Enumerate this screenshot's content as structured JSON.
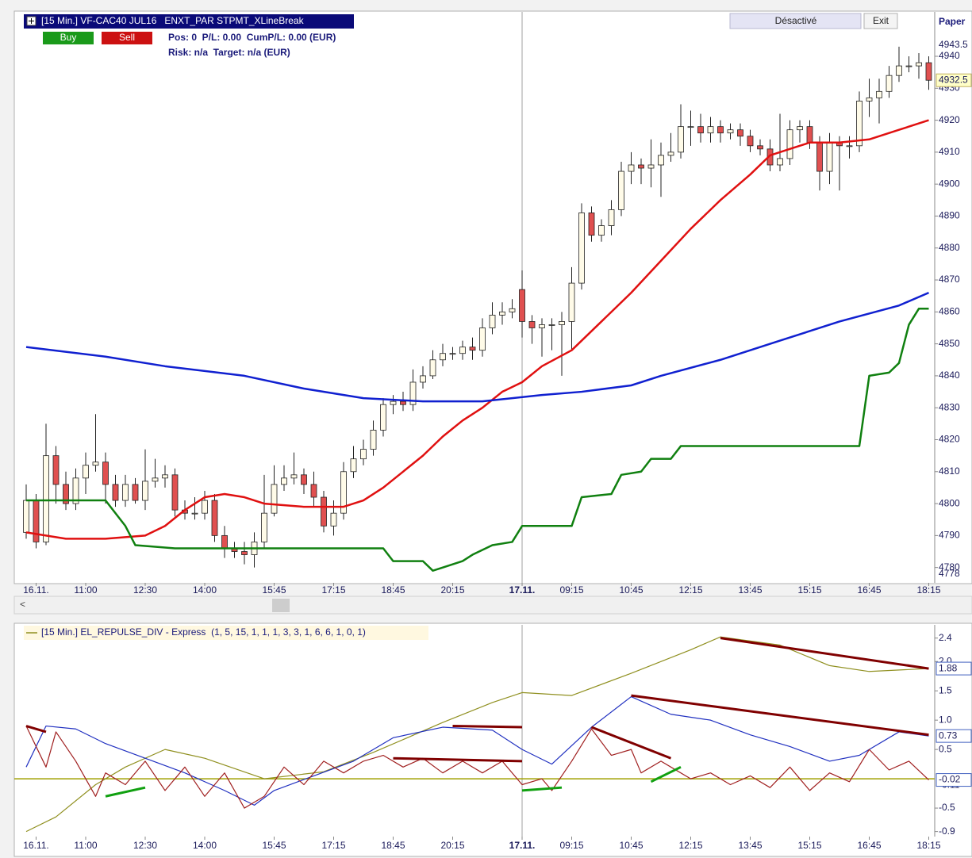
{
  "ui": {
    "title": "[15 Min.] VF-CAC40 JUL16   ENXT_PAR STPMT_XLineBreak",
    "buy": "Buy",
    "sell": "Sell",
    "position": "Pos: 0  P/L: 0.00  CumP/L: 0.00 (EUR)",
    "risk": "Risk: n/a  Target: n/a (EUR)",
    "mode": "Désactivé",
    "exit": "Exit",
    "account": "Paper"
  },
  "chart_data": [
    {
      "type": "candlestick",
      "up_color": "#fffbe8",
      "down_color": "#e05050",
      "open": [
        4791,
        4801,
        4788,
        4815,
        4806,
        4800,
        4808,
        4812,
        4813,
        4806,
        4801,
        4806,
        4801,
        4807,
        4808,
        4809,
        4798,
        4797,
        4797,
        4801,
        4790,
        4786,
        4785,
        4784,
        4788,
        4797,
        4806,
        4808,
        4809,
        4806,
        4802,
        4793,
        4797,
        4810,
        4814,
        4817,
        4823,
        4831,
        4832,
        4831,
        4838,
        4840,
        4845,
        4847,
        4847,
        4849,
        4848,
        4855,
        4859,
        4860,
        4867,
        4857,
        4855,
        4856,
        4856,
        4857,
        4869,
        4891,
        4884,
        4887,
        4892,
        4904,
        4906,
        4905,
        4906,
        4909,
        4910,
        4918,
        4918,
        4916,
        4918,
        4916,
        4917,
        4915,
        4912,
        4911,
        4906,
        4908,
        4917,
        4918,
        4913,
        4904,
        4913,
        4912,
        4912,
        4926,
        4927,
        4929,
        4934,
        4937,
        4937,
        4938
      ],
      "high": [
        4806,
        4803,
        4825,
        4818,
        4810,
        4811,
        4816,
        4828,
        4816,
        4809,
        4809,
        4808,
        4817,
        4814,
        4812,
        4811,
        4801,
        4802,
        4804,
        4803,
        4793,
        4788,
        4788,
        4791,
        4809,
        4812,
        4812,
        4816,
        4811,
        4810,
        4804,
        4801,
        4813,
        4818,
        4820,
        4826,
        4833,
        4834,
        4835,
        4842,
        4843,
        4848,
        4850,
        4849,
        4851,
        4852,
        4858,
        4863,
        4863,
        4864,
        4873,
        4859,
        4858,
        4858,
        4860,
        4874,
        4894,
        4893,
        4889,
        4895,
        4907,
        4910,
        4908,
        4914,
        4913,
        4916,
        4925,
        4923,
        4922,
        4921,
        4920,
        4919,
        4919,
        4917,
        4914,
        4914,
        4922,
        4920,
        4920,
        4920,
        4915,
        4916,
        4915,
        4915,
        4929,
        4933,
        4933,
        4937,
        4943,
        4940,
        4941,
        4940
      ],
      "low": [
        4789,
        4786,
        4787,
        4800,
        4798,
        4798,
        4803,
        4810,
        4800,
        4799,
        4799,
        4800,
        4798,
        4805,
        4805,
        4796,
        4795,
        4795,
        4795,
        4788,
        4783,
        4783,
        4781,
        4780,
        4786,
        4796,
        4804,
        4806,
        4803,
        4799,
        4791,
        4790,
        4795,
        4808,
        4812,
        4815,
        4821,
        4828,
        4829,
        4829,
        4836,
        4839,
        4843,
        4845,
        4845,
        4845,
        4846,
        4853,
        4856,
        4858,
        4852,
        4850,
        4846,
        4848,
        4840,
        4848,
        4867,
        4882,
        4882,
        4884,
        4890,
        4900,
        4900,
        4899,
        4896,
        4907,
        4908,
        4912,
        4913,
        4913,
        4913,
        4914,
        4912,
        4910,
        4909,
        4904,
        4904,
        4906,
        4913,
        4911,
        4898,
        4900,
        4898,
        4908,
        4910,
        4921,
        4919,
        4927,
        4932,
        4935,
        4933,
        4929.5
      ],
      "close": [
        4801,
        4788,
        4815,
        4806,
        4800,
        4808,
        4812,
        4813,
        4806,
        4801,
        4806,
        4801,
        4807,
        4808,
        4809,
        4798,
        4797,
        4797,
        4801,
        4790,
        4786,
        4785,
        4784,
        4788,
        4797,
        4806,
        4808,
        4809,
        4806,
        4802,
        4793,
        4797,
        4810,
        4814,
        4817,
        4823,
        4831,
        4832,
        4831,
        4838,
        4840,
        4845,
        4847,
        4847,
        4849,
        4848,
        4855,
        4859,
        4860,
        4861,
        4857,
        4855,
        4856,
        4856,
        4857,
        4869,
        4891,
        4884,
        4887,
        4892,
        4904,
        4906,
        4905,
        4906,
        4909,
        4910,
        4918,
        4918,
        4916,
        4918,
        4916,
        4917,
        4915,
        4912,
        4911,
        4906,
        4908,
        4917,
        4918,
        4913,
        4904,
        4913,
        4912,
        4912,
        4926,
        4927,
        4929,
        4934,
        4937,
        4937,
        4938,
        4932.5
      ],
      "series": [
        {
          "color": "#e01010",
          "x": [
            0,
            4,
            8,
            12,
            14,
            16,
            18,
            20,
            22,
            24,
            28,
            32,
            34,
            36,
            38,
            40,
            42,
            44,
            46,
            48,
            50,
            52,
            55,
            58,
            61,
            64,
            67,
            70,
            73,
            75,
            77,
            79,
            82,
            85,
            88,
            91
          ],
          "values": [
            4791,
            4789,
            4789,
            4790,
            4793,
            4798,
            4802,
            4803,
            4802,
            4800,
            4799,
            4799,
            4801,
            4805,
            4810,
            4815,
            4821,
            4826,
            4830,
            4835,
            4838,
            4843,
            4848,
            4857,
            4866,
            4876,
            4886,
            4895,
            4903,
            4909,
            4911,
            4913,
            4913,
            4914,
            4917,
            4920
          ]
        },
        {
          "color": "#1020d0",
          "x": [
            0,
            8,
            14,
            22,
            28,
            34,
            40,
            46,
            52,
            56,
            61,
            64,
            70,
            76,
            82,
            88,
            91
          ],
          "values": [
            4849,
            4846,
            4843,
            4840,
            4836,
            4833,
            4832,
            4832,
            4834,
            4835,
            4837,
            4840,
            4845,
            4851,
            4857,
            4862,
            4866
          ]
        },
        {
          "color": "#108010",
          "x": [
            0,
            8,
            10,
            11,
            15,
            36,
            37,
            40,
            41,
            42,
            44,
            45,
            47,
            49,
            50,
            55,
            56,
            59,
            60,
            62,
            63,
            65,
            66,
            84,
            85,
            87,
            88,
            89,
            90,
            91
          ],
          "values": [
            4801,
            4801,
            4793,
            4787,
            4786,
            4786,
            4782,
            4782,
            4779,
            4780,
            4782,
            4784,
            4787,
            4788,
            4793,
            4793,
            4802,
            4803,
            4809,
            4810,
            4814,
            4814,
            4818,
            4818,
            4840,
            4841,
            4844,
            4856,
            4861,
            4861
          ]
        }
      ],
      "markers": [
        {
          "value": 4943.5,
          "boxed": false
        },
        {
          "value": 4932.5,
          "boxed": true
        },
        {
          "value": 4778,
          "boxed": false
        }
      ],
      "xlim": [
        -1.2,
        91.6
      ],
      "xticks": [
        {
          "value": 1,
          "label": "16.11."
        },
        {
          "value": 6,
          "label": "11:00"
        },
        {
          "value": 12,
          "label": "12:30"
        },
        {
          "value": 18,
          "label": "14:00"
        },
        {
          "value": 25,
          "label": "15:45"
        },
        {
          "value": 31,
          "label": "17:15"
        },
        {
          "value": 37,
          "label": "18:45"
        },
        {
          "value": 43,
          "label": "20:15"
        },
        {
          "value": 50,
          "label": "17.11.",
          "bold": true
        },
        {
          "value": 55,
          "label": "09:15"
        },
        {
          "value": 61,
          "label": "10:45"
        },
        {
          "value": 67,
          "label": "12:15"
        },
        {
          "value": 73,
          "label": "13:45"
        },
        {
          "value": 79,
          "label": "15:15"
        },
        {
          "value": 85,
          "label": "16:45"
        },
        {
          "value": 91,
          "label": "18:15"
        }
      ],
      "ylim": [
        4775.2,
        4953.9
      ],
      "yticks": [
        4780,
        4790,
        4800,
        4810,
        4820,
        4830,
        4840,
        4850,
        4860,
        4870,
        4880,
        4890,
        4900,
        4910,
        4920,
        4930,
        4940
      ]
    },
    {
      "type": "line",
      "title": "[15 Min.] EL_REPULSE_DIV - Express  (1, 5, 15, 1, 1, 1, 3, 3, 1, 6, 6, 1, 0, 1)",
      "zero_line_color": "#a0a000",
      "series": [
        {
          "color": "#909020",
          "x": [
            0,
            3,
            7,
            10,
            14,
            18,
            24,
            30,
            35,
            42,
            47,
            50,
            55,
            61,
            67,
            70,
            76,
            81,
            85,
            91
          ],
          "values": [
            -0.9,
            -0.65,
            -0.1,
            0.2,
            0.5,
            0.35,
            0,
            0.12,
            0.45,
            0.96,
            1.3,
            1.47,
            1.42,
            1.8,
            2.2,
            2.42,
            2.28,
            1.93,
            1.83,
            1.88
          ]
        },
        {
          "color": "#2030c0",
          "x": [
            0,
            2,
            5,
            8,
            12,
            16,
            20,
            23,
            25,
            29,
            33,
            37,
            42,
            47,
            50,
            53,
            57,
            61,
            65,
            69,
            73,
            77,
            81,
            84,
            88,
            91
          ],
          "values": [
            0.2,
            0.9,
            0.85,
            0.6,
            0.35,
            0.1,
            -0.2,
            -0.45,
            -0.2,
            0.05,
            0.3,
            0.7,
            0.88,
            0.83,
            0.5,
            0.25,
            0.88,
            1.4,
            1.1,
            1.0,
            0.75,
            0.55,
            0.3,
            0.4,
            0.8,
            0.73
          ]
        },
        {
          "color": "#a02020",
          "x": [
            0,
            2,
            3,
            5,
            7,
            8,
            10,
            12,
            14,
            16,
            18,
            20,
            22,
            24,
            26,
            28,
            30,
            32,
            34,
            36,
            38,
            40,
            42,
            44,
            46,
            48,
            50,
            52,
            53,
            55,
            57,
            59,
            61,
            62,
            64,
            65,
            67,
            69,
            71,
            73,
            75,
            77,
            79,
            81,
            83,
            85,
            87,
            89,
            91
          ],
          "values": [
            0.9,
            0.2,
            0.8,
            0.3,
            -0.3,
            0.1,
            -0.1,
            0.3,
            -0.2,
            0.2,
            -0.3,
            0.1,
            -0.5,
            -0.3,
            0.2,
            -0.1,
            0.3,
            0.1,
            0.3,
            0.4,
            0.2,
            0.35,
            0.1,
            0.3,
            0.1,
            0.3,
            -0.1,
            0,
            -0.2,
            0.3,
            0.85,
            0.4,
            0.5,
            0.1,
            0.3,
            0.2,
            0,
            0.1,
            -0.1,
            0.05,
            -0.15,
            0.2,
            -0.2,
            0.1,
            -0.05,
            0.5,
            0.15,
            0.3,
            -0.02
          ]
        }
      ],
      "divergences": [
        {
          "color": "#800000",
          "x": [
            0,
            2
          ],
          "values": [
            0.9,
            0.8
          ]
        },
        {
          "color": "#800000",
          "x": [
            37,
            50
          ],
          "values": [
            0.35,
            0.3
          ]
        },
        {
          "color": "#800000",
          "x": [
            43,
            50
          ],
          "values": [
            0.9,
            0.88
          ]
        },
        {
          "color": "#800000",
          "x": [
            57,
            65
          ],
          "values": [
            0.88,
            0.35
          ]
        },
        {
          "color": "#800000",
          "x": [
            61,
            91
          ],
          "values": [
            1.42,
            0.75
          ]
        },
        {
          "color": "#800000",
          "x": [
            70,
            91
          ],
          "values": [
            2.4,
            1.88
          ]
        },
        {
          "color": "#10a010",
          "x": [
            8,
            12
          ],
          "values": [
            -0.3,
            -0.15
          ]
        },
        {
          "color": "#10a010",
          "x": [
            50,
            54
          ],
          "values": [
            -0.2,
            -0.15
          ]
        },
        {
          "color": "#10a010",
          "x": [
            63,
            66
          ],
          "values": [
            -0.05,
            0.2
          ]
        }
      ],
      "markers": [
        {
          "value": -0.11,
          "boxed": false
        },
        {
          "value": 1.88,
          "boxed": true
        },
        {
          "value": 0.73,
          "boxed": true
        },
        {
          "value": -0.02,
          "boxed": true
        }
      ],
      "xlim": [
        -1.2,
        91.6
      ],
      "xticks": [
        {
          "value": 1,
          "label": "16.11."
        },
        {
          "value": 6,
          "label": "11:00"
        },
        {
          "value": 12,
          "label": "12:30"
        },
        {
          "value": 18,
          "label": "14:00"
        },
        {
          "value": 25,
          "label": "15:45"
        },
        {
          "value": 31,
          "label": "17:15"
        },
        {
          "value": 37,
          "label": "18:45"
        },
        {
          "value": 43,
          "label": "20:15"
        },
        {
          "value": 50,
          "label": "17.11.",
          "bold": true
        },
        {
          "value": 55,
          "label": "09:15"
        },
        {
          "value": 61,
          "label": "10:45"
        },
        {
          "value": 67,
          "label": "12:15"
        },
        {
          "value": 73,
          "label": "13:45"
        },
        {
          "value": 79,
          "label": "15:15"
        },
        {
          "value": 85,
          "label": "16:45"
        },
        {
          "value": 91,
          "label": "18:15"
        }
      ],
      "ylim": [
        -0.986,
        2.625
      ],
      "yticks": [
        -0.9,
        -0.5,
        0.5,
        {
          "value": 1,
          "label": "1.0"
        },
        1.5,
        {
          "value": 2,
          "label": "2.0"
        },
        2.4
      ]
    }
  ]
}
